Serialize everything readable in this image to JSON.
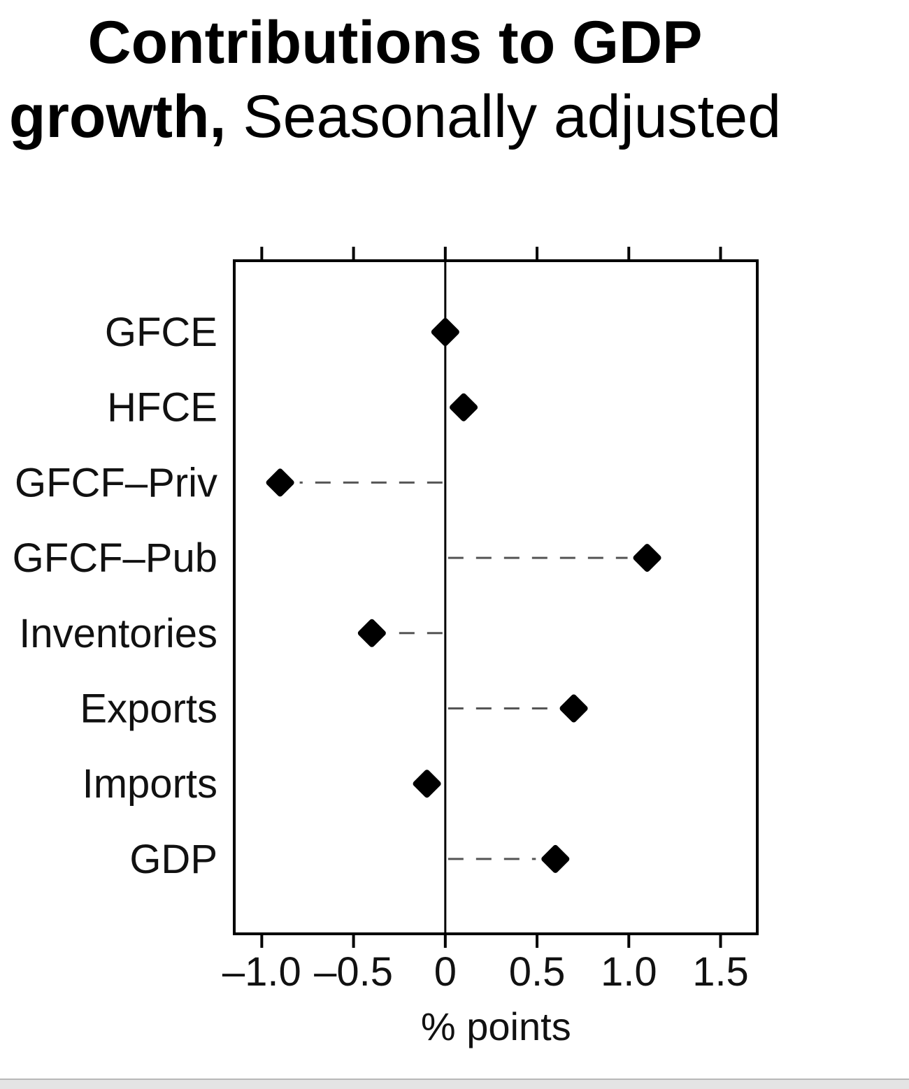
{
  "title": {
    "bold": "Contributions to GDP growth,",
    "regular": "Seasonally adjusted"
  },
  "chart_data": {
    "type": "scatter",
    "subtype": "dot-plot",
    "categories": [
      "GFCE",
      "HFCE",
      "GFCF–Priv",
      "GFCF–Pub",
      "Inventories",
      "Exports",
      "Imports",
      "GDP"
    ],
    "values": [
      0.0,
      0.1,
      -0.9,
      1.1,
      -0.4,
      0.7,
      -0.1,
      0.6
    ],
    "xlabel": "% points",
    "xlim": [
      -1.15,
      1.7
    ],
    "xticks": [
      -1.0,
      -0.5,
      0,
      0.5,
      1.0,
      1.5
    ],
    "xtick_labels": [
      "–1.0",
      "–0.5",
      "0",
      "0.5",
      "1.0",
      "1.5"
    ],
    "reference_line": 0,
    "connector_style": "dashed",
    "marker": "filled-diamond",
    "grid": false,
    "colors": {
      "marker": "#000000",
      "connector": "#555555",
      "frame": "#000000"
    }
  }
}
